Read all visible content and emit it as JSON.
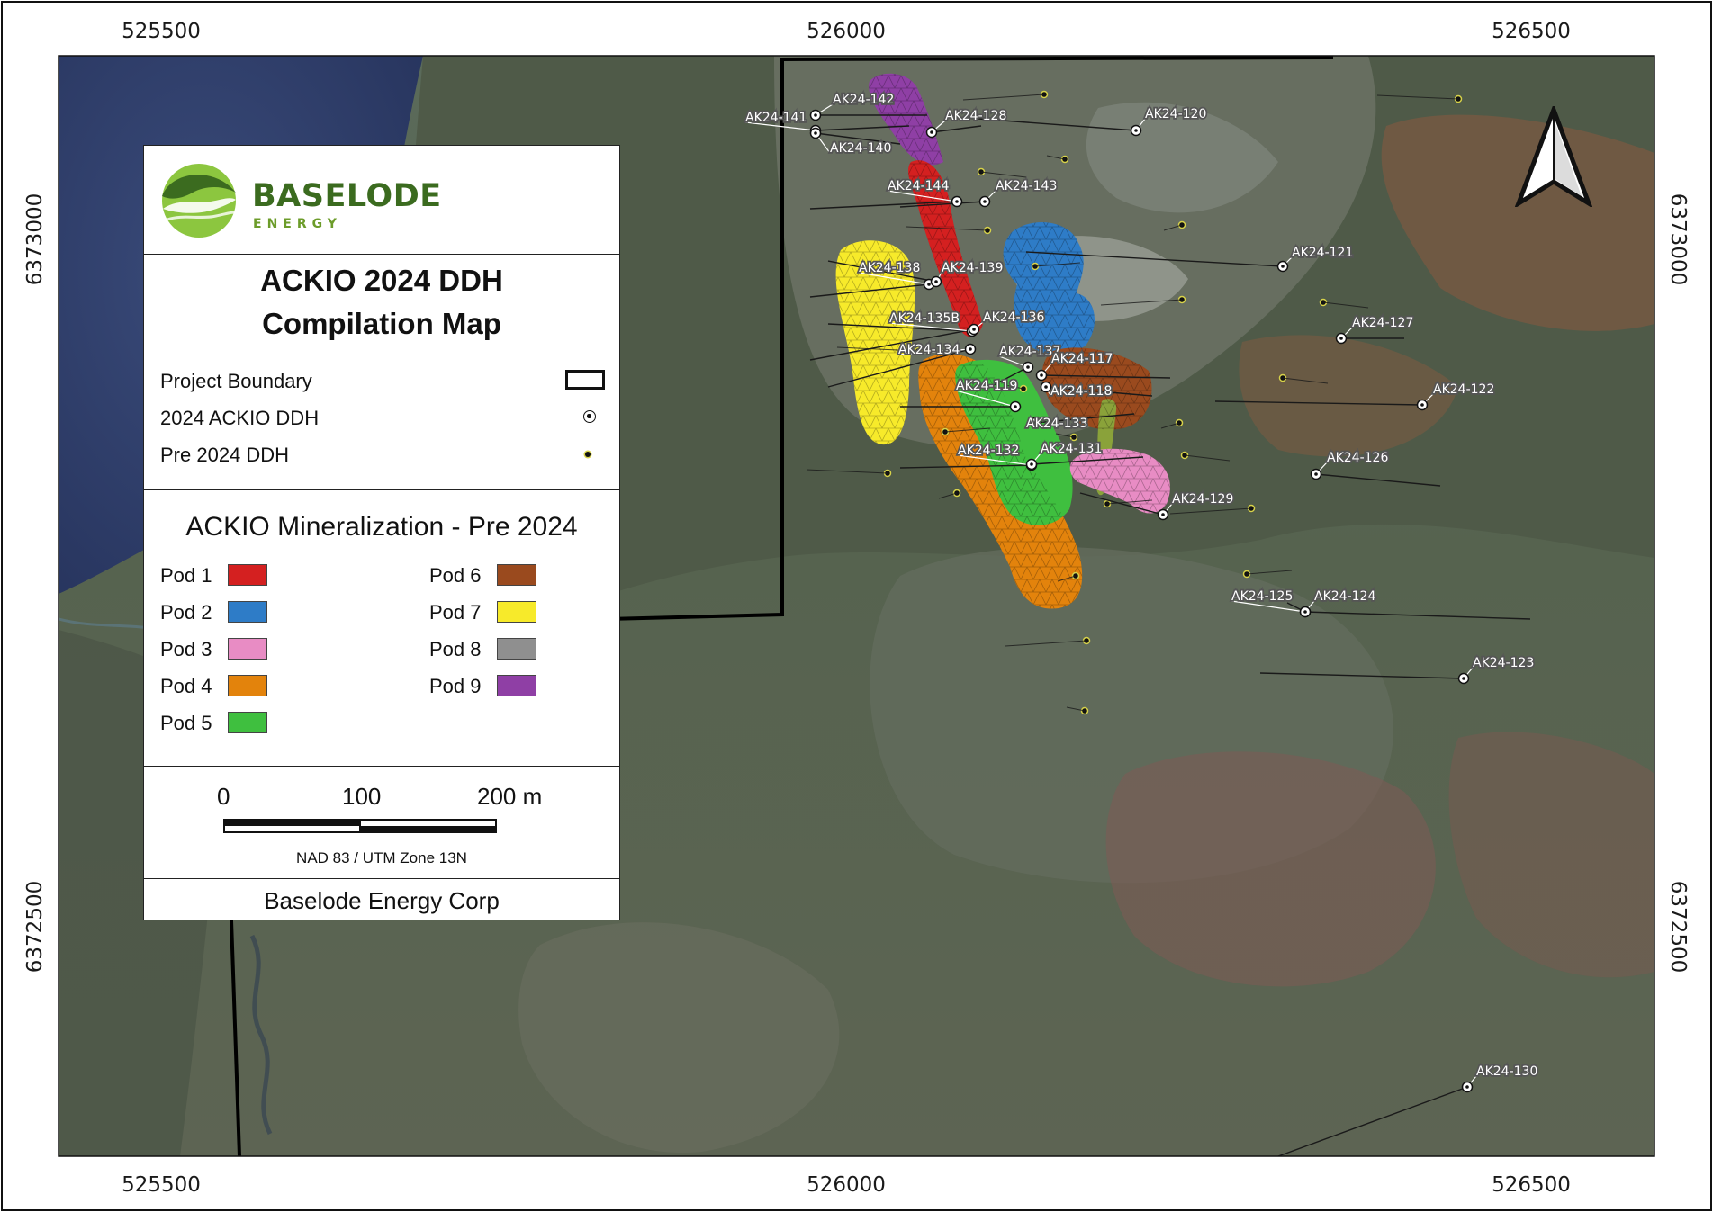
{
  "map": {
    "easting_labels": [
      "525500",
      "526000",
      "526500"
    ],
    "northing_labels": [
      "6373000",
      "6372500"
    ],
    "colors": {
      "frame": "#111111",
      "boundary": "#000000",
      "drill_trace": "#1a1a1a",
      "label_bg": "#555555"
    }
  },
  "drill_holes_2024": [
    {
      "id": "AK24-142"
    },
    {
      "id": "AK24-141"
    },
    {
      "id": "AK24-128"
    },
    {
      "id": "AK24-120"
    },
    {
      "id": "AK24-140"
    },
    {
      "id": "AK24-144"
    },
    {
      "id": "AK24-143"
    },
    {
      "id": "AK24-121"
    },
    {
      "id": "AK24-138"
    },
    {
      "id": "AK24-139"
    },
    {
      "id": "AK24-127"
    },
    {
      "id": "AK24-135B"
    },
    {
      "id": "AK24-136"
    },
    {
      "id": "AK24-134"
    },
    {
      "id": "AK24-137"
    },
    {
      "id": "AK24-117"
    },
    {
      "id": "AK24-119"
    },
    {
      "id": "AK24-118"
    },
    {
      "id": "AK24-122"
    },
    {
      "id": "AK24-133"
    },
    {
      "id": "AK24-132"
    },
    {
      "id": "AK24-131"
    },
    {
      "id": "AK24-126"
    },
    {
      "id": "AK24-129"
    },
    {
      "id": "AK24-125"
    },
    {
      "id": "AK24-124"
    },
    {
      "id": "AK24-123"
    },
    {
      "id": "AK24-130"
    }
  ],
  "pods": [
    {
      "label": "Pod 1",
      "color": "#d42020"
    },
    {
      "label": "Pod 2",
      "color": "#2e7cc7"
    },
    {
      "label": "Pod 3",
      "color": "#e88cc4"
    },
    {
      "label": "Pod 4",
      "color": "#e3830c"
    },
    {
      "label": "Pod 5",
      "color": "#3fbf3f"
    },
    {
      "label": "Pod 6",
      "color": "#9a4a1e"
    },
    {
      "label": "Pod 7",
      "color": "#f7ea2a"
    },
    {
      "label": "Pod 8",
      "color": "#8f8f8f"
    },
    {
      "label": "Pod 9",
      "color": "#8f3fa5"
    }
  ],
  "legend": {
    "logo_name": "BASELODE",
    "logo_sub": "ENERGY",
    "logo_colors": {
      "dark": "#3b6b1f",
      "light": "#8cc63f"
    },
    "title_line1": "ACKIO 2024 DDH",
    "title_line2": "Compilation Map",
    "symbols": {
      "project_boundary": "Project Boundary",
      "ddh_2024": "2024 ACKIO DDH",
      "ddh_pre2024": "Pre 2024 DDH"
    },
    "mineralization_title": "ACKIO Mineralization - Pre 2024",
    "scale": {
      "labels": [
        "0",
        "100",
        "200 m"
      ],
      "crs": "NAD 83 / UTM Zone 13N"
    },
    "organization": "Baselode Energy Corp"
  },
  "north_arrow": {
    "icon": "north-arrow-icon"
  }
}
